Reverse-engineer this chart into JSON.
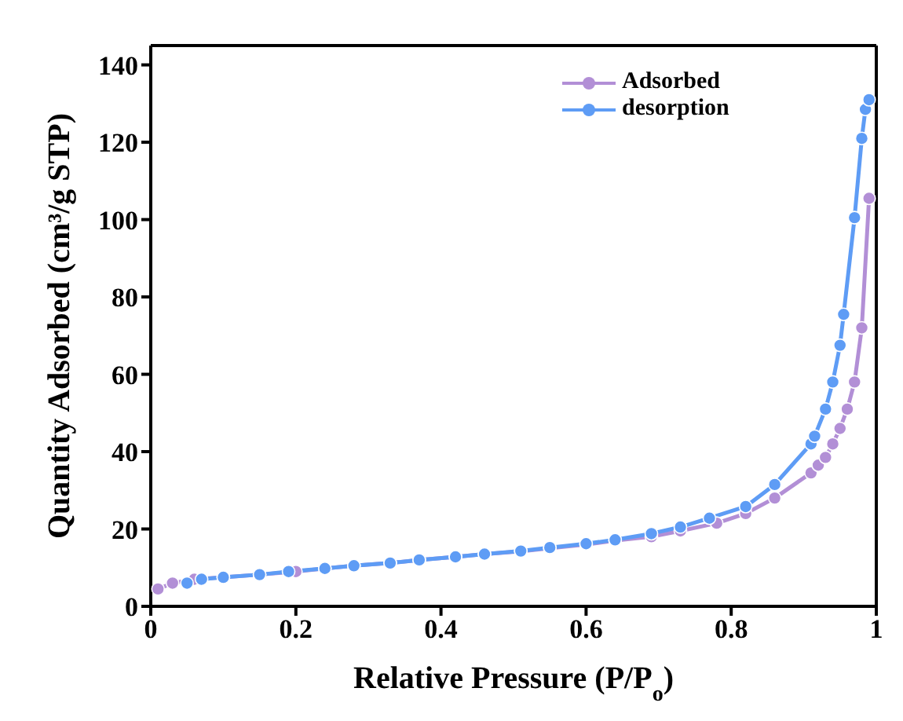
{
  "chart_data": {
    "type": "line",
    "xlabel": "Relative Pressure (P/P$_{o}$)",
    "ylabel": "Quantity Adsorbed (cm³/g STP)",
    "xlim": [
      0,
      1
    ],
    "xticks": [
      0,
      0.2,
      0.4,
      0.6,
      0.8,
      1
    ],
    "ylim": [
      0,
      145
    ],
    "yticks": [
      0,
      20,
      40,
      60,
      80,
      100,
      120,
      140
    ],
    "grid": false,
    "legend": "top right",
    "marker": "circle",
    "line_style": "solid",
    "series": [
      {
        "name": "Adsorbed",
        "color": "#b28fd6",
        "x": [
          0.01,
          0.03,
          0.06,
          0.1,
          0.15,
          0.2,
          0.24,
          0.28,
          0.33,
          0.37,
          0.42,
          0.46,
          0.51,
          0.55,
          0.6,
          0.64,
          0.69,
          0.73,
          0.78,
          0.82,
          0.86,
          0.91,
          0.92,
          0.93,
          0.94,
          0.95,
          0.96,
          0.97,
          0.98,
          0.99
        ],
        "values": [
          4.5,
          6,
          7,
          7.5,
          8.2,
          9,
          9.8,
          10.5,
          11.2,
          12,
          12.8,
          13.5,
          14.2,
          15,
          16,
          17,
          18,
          19.5,
          21.5,
          24,
          28,
          34.5,
          36.5,
          38.5,
          42,
          46,
          51,
          58,
          72,
          105.5
        ]
      },
      {
        "name": "desorption",
        "color": "#5e9cf5",
        "x": [
          0.05,
          0.07,
          0.1,
          0.15,
          0.19,
          0.24,
          0.28,
          0.33,
          0.37,
          0.42,
          0.46,
          0.51,
          0.55,
          0.6,
          0.64,
          0.69,
          0.73,
          0.77,
          0.82,
          0.86,
          0.91,
          0.915,
          0.93,
          0.94,
          0.95,
          0.955,
          0.97,
          0.98,
          0.985,
          0.99
        ],
        "values": [
          6,
          7,
          7.5,
          8.2,
          9,
          9.8,
          10.5,
          11.2,
          12,
          12.8,
          13.5,
          14.3,
          15.2,
          16.2,
          17.2,
          18.8,
          20.5,
          22.8,
          25.8,
          31.5,
          42,
          44,
          51,
          58,
          67.5,
          75.5,
          100.5,
          121,
          128.5,
          131
        ]
      }
    ]
  }
}
